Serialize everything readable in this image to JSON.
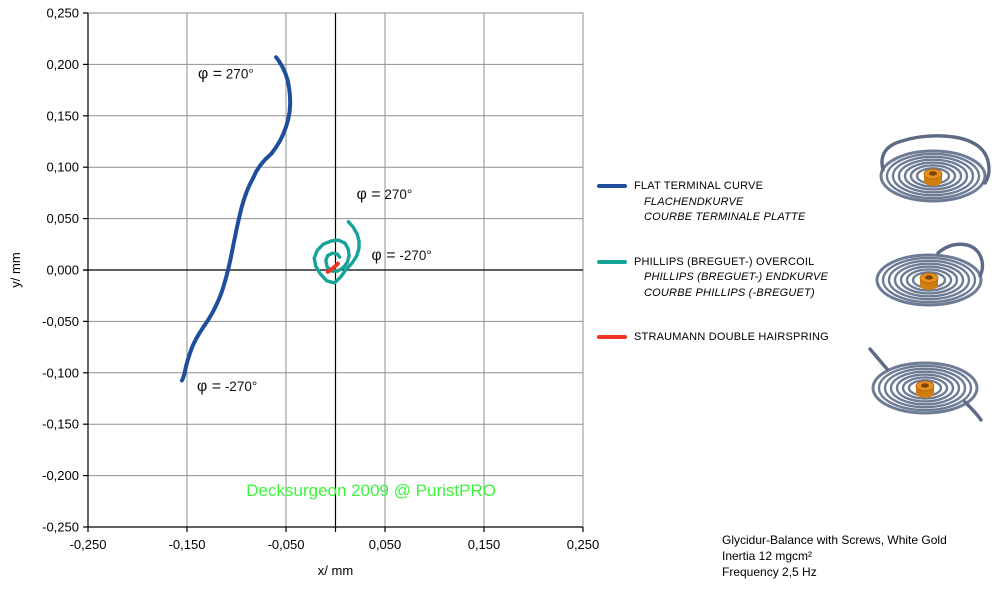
{
  "chart_data": {
    "type": "line",
    "title": "",
    "xlabel": "x/ mm",
    "ylabel": "y/ mm",
    "xlim": [
      -0.25,
      0.25
    ],
    "ylim": [
      -0.25,
      0.25
    ],
    "grid": true,
    "legend_position": "right",
    "x_ticks": [
      -0.25,
      -0.15,
      -0.05,
      0.05,
      0.15,
      0.25
    ],
    "x_tick_labels": [
      "-0,250",
      "-0,150",
      "-0,050",
      "0,050",
      "0,150",
      "0,250"
    ],
    "y_ticks": [
      0.25,
      0.2,
      0.15,
      0.1,
      0.05,
      0.0,
      -0.05,
      -0.1,
      -0.15,
      -0.2,
      -0.25
    ],
    "y_tick_labels": [
      "0,250",
      "0,200",
      "0,150",
      "0,100",
      "0,050",
      "0,000",
      "-0,050",
      "-0,100",
      "-0,150",
      "-0,200",
      "-0,250"
    ],
    "series": [
      {
        "name": "FLAT TERMINAL CURVE",
        "color": "#1f4e9c",
        "width": 4,
        "points": [
          [
            -0.06,
            0.207
          ],
          [
            -0.057,
            0.203
          ],
          [
            -0.0535,
            0.1975
          ],
          [
            -0.0505,
            0.191
          ],
          [
            -0.0482,
            0.184
          ],
          [
            -0.0468,
            0.1765
          ],
          [
            -0.046,
            0.169
          ],
          [
            -0.0458,
            0.1615
          ],
          [
            -0.0464,
            0.154
          ],
          [
            -0.0478,
            0.1465
          ],
          [
            -0.05,
            0.1392
          ],
          [
            -0.0528,
            0.1322
          ],
          [
            -0.0562,
            0.1255
          ],
          [
            -0.0602,
            0.1192
          ],
          [
            -0.0646,
            0.1132
          ],
          [
            -0.071,
            0.1075
          ],
          [
            -0.076,
            0.1018
          ],
          [
            -0.08,
            0.096
          ],
          [
            -0.083,
            0.0898
          ],
          [
            -0.0866,
            0.0832
          ],
          [
            -0.0897,
            0.0762
          ],
          [
            -0.0923,
            0.069
          ],
          [
            -0.0946,
            0.0616
          ],
          [
            -0.0966,
            0.0541
          ],
          [
            -0.0984,
            0.0465
          ],
          [
            -0.1001,
            0.0389
          ],
          [
            -0.1017,
            0.0312
          ],
          [
            -0.1033,
            0.0236
          ],
          [
            -0.1049,
            0.0159
          ],
          [
            -0.1066,
            0.0083
          ],
          [
            -0.1084,
            0.0007
          ],
          [
            -0.1104,
            -0.0069
          ],
          [
            -0.1126,
            -0.0144
          ],
          [
            -0.1151,
            -0.0218
          ],
          [
            -0.118,
            -0.029
          ],
          [
            -0.1213,
            -0.036
          ],
          [
            -0.125,
            -0.0427
          ],
          [
            -0.129,
            -0.0491
          ],
          [
            -0.1332,
            -0.0552
          ],
          [
            -0.1373,
            -0.0612
          ],
          [
            -0.141,
            -0.0673
          ],
          [
            -0.1442,
            -0.0737
          ],
          [
            -0.1469,
            -0.0804
          ],
          [
            -0.1492,
            -0.0873
          ],
          [
            -0.1511,
            -0.0943
          ],
          [
            -0.1526,
            -0.101
          ],
          [
            -0.1543,
            -0.1062
          ],
          [
            -0.1552,
            -0.1075
          ]
        ]
      },
      {
        "name": "PHILLIPS (BREGUET-) OVERCOIL",
        "color": "#17a39a",
        "width": 3.4,
        "points": [
          [
            0.013,
            0.047
          ],
          [
            0.018,
            0.0415
          ],
          [
            0.0218,
            0.035
          ],
          [
            0.0238,
            0.0278
          ],
          [
            0.0236,
            0.0205
          ],
          [
            0.0213,
            0.0135
          ],
          [
            0.017,
            0.007
          ],
          [
            0.0112,
            0.001
          ],
          [
            0.005,
            -0.007
          ],
          [
            -0.001,
            -0.0125
          ],
          [
            -0.009,
            -0.0105
          ],
          [
            -0.016,
            -0.003
          ],
          [
            -0.02,
            0.004
          ],
          [
            -0.0215,
            0.0115
          ],
          [
            -0.0185,
            0.019
          ],
          [
            -0.0125,
            0.025
          ],
          [
            -0.0042,
            0.0282
          ],
          [
            0.003,
            0.029
          ],
          [
            0.0095,
            0.0262
          ],
          [
            0.0128,
            0.0205
          ],
          [
            0.0137,
            0.014
          ],
          [
            0.012,
            0.0075
          ],
          [
            0.0078,
            0.0022
          ],
          [
            0.0018,
            -0.0012
          ],
          [
            -0.0042,
            -0.001
          ],
          [
            -0.0085,
            0.003
          ],
          [
            -0.0098,
            0.009
          ],
          [
            -0.008,
            0.014
          ],
          [
            -0.0032,
            0.0163
          ],
          [
            0.0018,
            0.0155
          ],
          [
            0.0042,
            0.0125
          ]
        ]
      },
      {
        "name": "STRAUMANN DOUBLE HAIRSPRING",
        "color": "#ee3524",
        "width": 4,
        "points": [
          [
            -0.0078,
            -0.0018
          ],
          [
            -0.0042,
            0.0006
          ],
          [
            -0.0006,
            0.0032
          ],
          [
            0.0024,
            0.0062
          ]
        ]
      }
    ],
    "annotations": [
      {
        "text": "φ = 270°",
        "x": -0.139,
        "y": 0.191
      },
      {
        "text": "φ = 270°",
        "x": 0.0212,
        "y": 0.074
      },
      {
        "text": "φ = -270°",
        "x": 0.0363,
        "y": 0.0146
      },
      {
        "text": "φ = -270°",
        "x": -0.14,
        "y": -0.1128
      }
    ],
    "watermark": {
      "text": "Decksurgeon 2009 @ PuristPRO",
      "color": "#3bf53b",
      "x": 0.036,
      "y": -0.215
    }
  },
  "legend": {
    "items": [
      {
        "label": "FLAT TERMINAL CURVE",
        "sub": [
          "FLACHENDKURVE",
          "COURBE TERMINALE PLATTE"
        ]
      },
      {
        "label": "PHILLIPS (BREGUET-) OVERCOIL",
        "sub": [
          "PHILLIPS (BREGUET-) ENDKURVE",
          "COURBE PHILLIPS (-BREGUET)"
        ]
      },
      {
        "label": "STRAUMANN DOUBLE HAIRSPRING",
        "sub": []
      }
    ]
  },
  "images": {
    "items": [
      {
        "name": "flat-hairspring-render"
      },
      {
        "name": "overcoil-hairspring-render"
      },
      {
        "name": "double-hairspring-render"
      }
    ],
    "coil_color": "#6e7b95",
    "collet_color": "#e8901f"
  },
  "info": {
    "lines": [
      "Glycidur-Balance with Screws, White Gold",
      "Inertia 12 mgcm²",
      "Frequency 2,5 Hz"
    ]
  }
}
